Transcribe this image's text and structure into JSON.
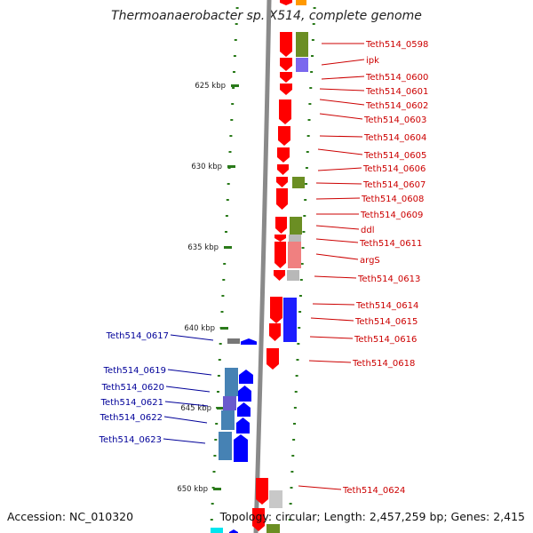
{
  "title": "Thermoanaerobacter sp. X514, complete genome",
  "accession": "Accession: NC_010320",
  "topology": "Topology: circular; Length: 2,457,259 bp; Genes: 2,415",
  "colors": {
    "backbone": "#8a8a8a",
    "tick": "#2a7a1a",
    "forward_gene": "#ff0000",
    "reverse_gene": "#0000ff",
    "forward_label": "#cc0000",
    "reverse_label": "#000099"
  },
  "scale_marks": [
    "625 kbp",
    "630 kbp",
    "635 kbp",
    "640 kbp",
    "645 kbp",
    "650 kbp"
  ],
  "forward_genes": [
    {
      "name": "Teth514_0598"
    },
    {
      "name": "ipk"
    },
    {
      "name": "Teth514_0600"
    },
    {
      "name": "Teth514_0601"
    },
    {
      "name": "Teth514_0602"
    },
    {
      "name": "Teth514_0603"
    },
    {
      "name": "Teth514_0604"
    },
    {
      "name": "Teth514_0605"
    },
    {
      "name": "Teth514_0606"
    },
    {
      "name": "Teth514_0607"
    },
    {
      "name": "Teth514_0608"
    },
    {
      "name": "Teth514_0609"
    },
    {
      "name": "ddl"
    },
    {
      "name": "Teth514_0611"
    },
    {
      "name": "argS"
    },
    {
      "name": "Teth514_0613"
    },
    {
      "name": "Teth514_0614"
    },
    {
      "name": "Teth514_0615"
    },
    {
      "name": "Teth514_0616"
    },
    {
      "name": "Teth514_0618"
    },
    {
      "name": "Teth514_0624"
    }
  ],
  "reverse_genes": [
    {
      "name": "Teth514_0617"
    },
    {
      "name": "Teth514_0619"
    },
    {
      "name": "Teth514_0620"
    },
    {
      "name": "Teth514_0621"
    },
    {
      "name": "Teth514_0622"
    },
    {
      "name": "Teth514_0623"
    }
  ]
}
